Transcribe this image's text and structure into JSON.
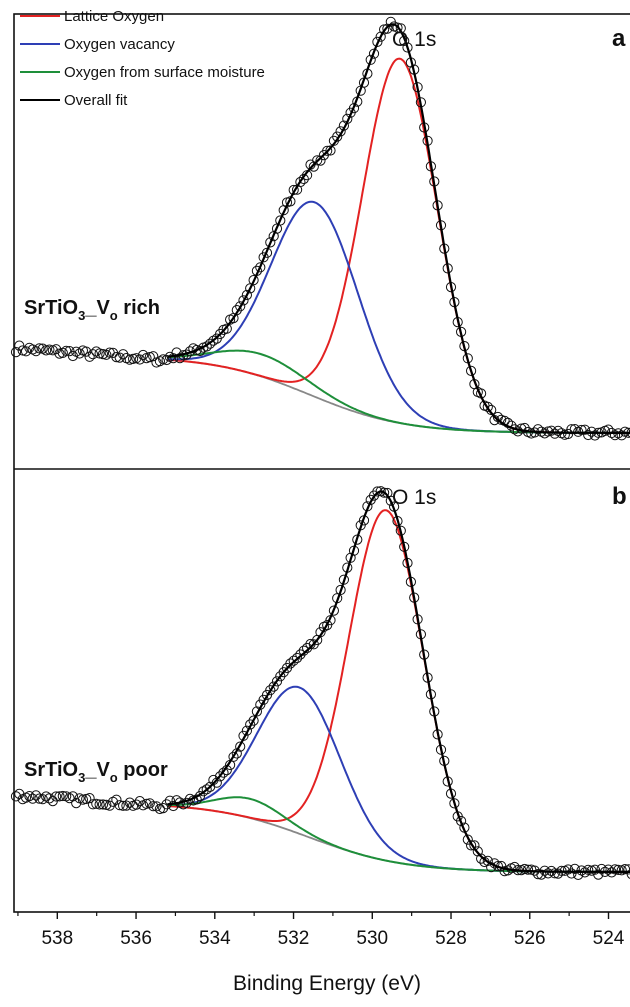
{
  "chart_data": {
    "type": "line",
    "xlabel": "Binding Energy (eV)",
    "xlim": [
      539.1,
      523.2
    ],
    "x_ticks": [
      "538",
      "536",
      "534",
      "532",
      "530",
      "528",
      "526",
      "524"
    ],
    "x_tick_values": [
      538,
      536,
      534,
      532,
      530,
      528,
      526,
      524
    ],
    "legend": [
      {
        "label": "Lattice Oxygen",
        "color": "#e32222"
      },
      {
        "label": "Oxygen vacancy",
        "color": "#2e3fb5"
      },
      {
        "label": "Oxygen from surface moisture",
        "color": "#1e8f3a"
      },
      {
        "label": "Overall fit",
        "color": "#000000"
      }
    ],
    "legend_position": "top-left",
    "panels": [
      {
        "letter": "a",
        "peak_label": "O 1s",
        "sample_label": {
          "main": "SrTiO",
          "sub1": "3",
          "mid": "_V",
          "sub2": "o",
          "tail": " rich"
        },
        "background": {
          "high": 0.19,
          "low": 0.0
        },
        "components": [
          {
            "name": "Lattice Oxygen",
            "color": "#e32222",
            "center": 529.3,
            "sigma": 0.95,
            "amp": 0.9
          },
          {
            "name": "Oxygen vacancy",
            "color": "#2e3fb5",
            "center": 531.45,
            "sigma": 1.1,
            "amp": 0.48
          },
          {
            "name": "Oxygen from surface moisture",
            "color": "#1e8f3a",
            "center": 532.8,
            "sigma": 1.15,
            "amp": 0.055
          }
        ],
        "noise_data_points": true
      },
      {
        "letter": "b",
        "peak_label": "O 1s",
        "sample_label": {
          "main": "SrTiO",
          "sub1": "3",
          "mid": "_V",
          "sub2": "o",
          "tail": " poor"
        },
        "background": {
          "high": 0.18,
          "low": 0.0
        },
        "components": [
          {
            "name": "Lattice Oxygen",
            "color": "#e32222",
            "center": 529.65,
            "sigma": 0.95,
            "amp": 0.91
          },
          {
            "name": "Oxygen vacancy",
            "color": "#2e3fb5",
            "center": 531.85,
            "sigma": 1.05,
            "amp": 0.38
          },
          {
            "name": "Oxygen from surface moisture",
            "color": "#1e8f3a",
            "center": 533.1,
            "sigma": 0.85,
            "amp": 0.05
          }
        ],
        "noise_data_points": true
      }
    ]
  }
}
